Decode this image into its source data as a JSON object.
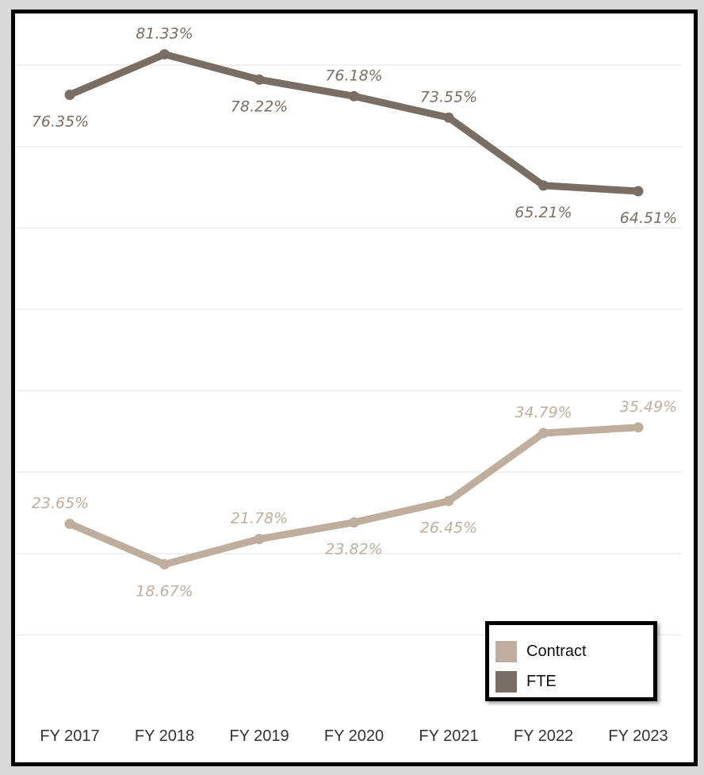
{
  "chart_data": {
    "type": "line",
    "categories": [
      "FY 2017",
      "FY 2018",
      "FY 2019",
      "FY 2020",
      "FY 2021",
      "FY 2022",
      "FY 2023"
    ],
    "series": [
      {
        "name": "FTE",
        "color": "#7a6e64",
        "values": [
          76.35,
          81.33,
          78.22,
          76.18,
          73.55,
          65.21,
          64.51
        ],
        "labels": [
          "76.35%",
          "81.33%",
          "78.22%",
          "76.18%",
          "73.55%",
          "65.21%",
          "64.51%"
        ],
        "label_position": [
          "below",
          "above",
          "below",
          "above",
          "above",
          "below",
          "below"
        ]
      },
      {
        "name": "Contract",
        "color": "#bfae9d",
        "values": [
          23.65,
          18.67,
          21.78,
          23.82,
          26.45,
          34.79,
          35.49
        ],
        "labels": [
          "23.65%",
          "18.67%",
          "21.78%",
          "23.82%",
          "26.45%",
          "34.79%",
          "35.49%"
        ],
        "label_position": [
          "above",
          "below",
          "above",
          "below",
          "below",
          "above",
          "above"
        ]
      }
    ],
    "ylim": [
      0,
      88
    ],
    "grid": true,
    "legend_position": "bottom-right",
    "title": "",
    "xlabel": "",
    "ylabel": ""
  },
  "legend": {
    "items": [
      {
        "label": "Contract",
        "color": "#bfae9d"
      },
      {
        "label": "FTE",
        "color": "#7a6e64"
      }
    ]
  }
}
